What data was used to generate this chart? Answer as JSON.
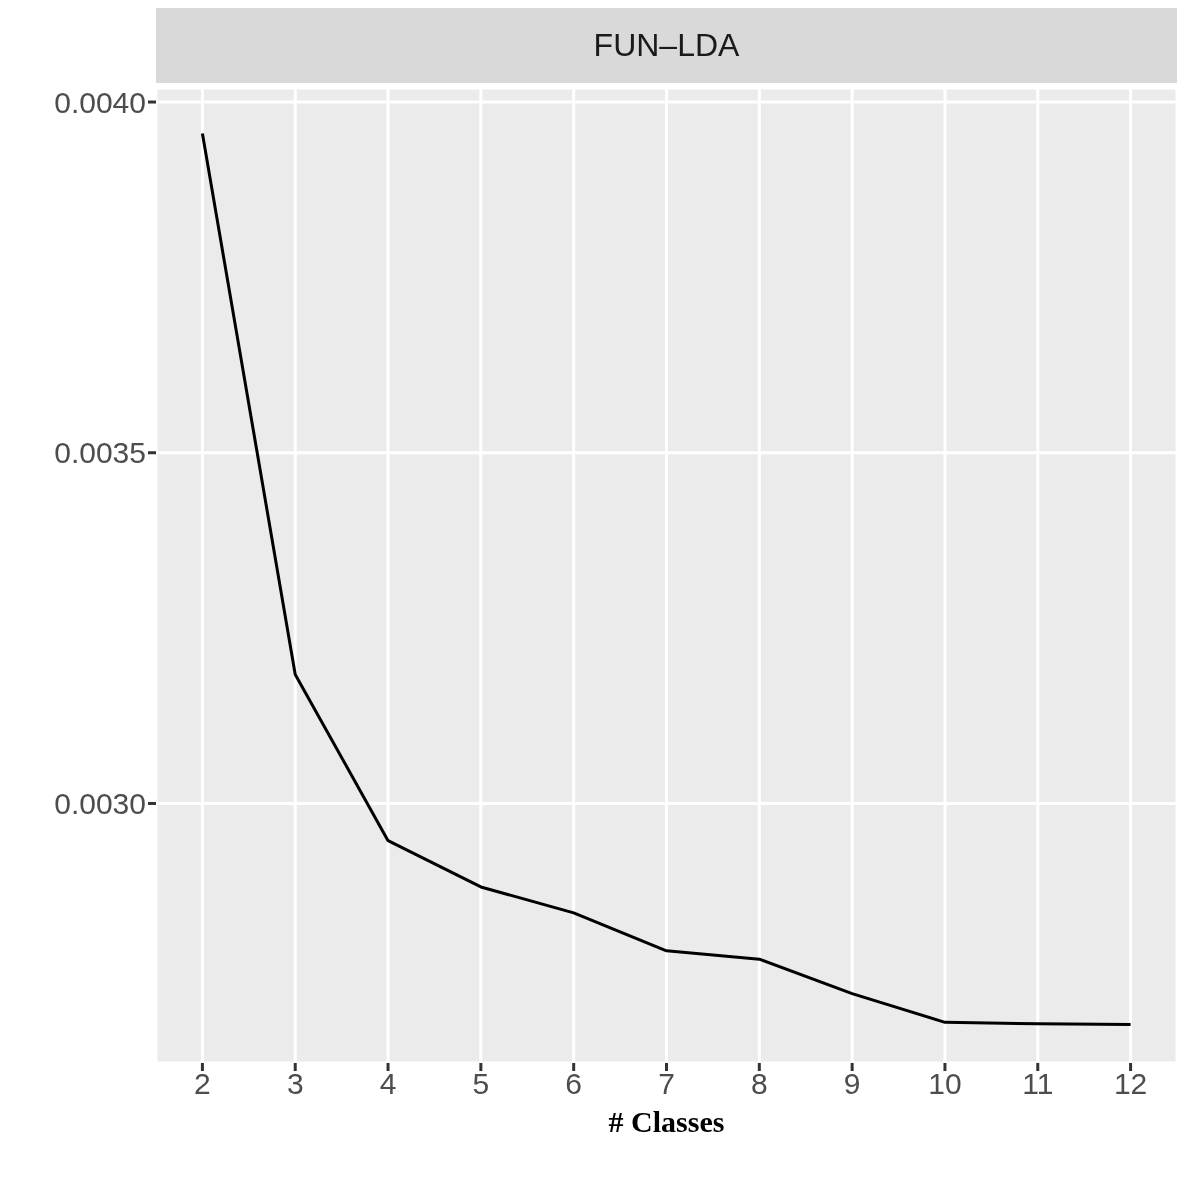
{
  "chart_data": {
    "type": "line",
    "title": "FUN–LDA",
    "xlabel": "# Classes",
    "x": [
      2,
      3,
      4,
      5,
      6,
      7,
      8,
      9,
      10,
      11,
      12
    ],
    "series": [
      {
        "color": "#000000",
        "values": [
          0.003955,
          0.003184,
          0.002947,
          0.002881,
          0.002844,
          0.00279,
          0.002778,
          0.002729,
          0.002688,
          0.002686,
          0.002685
        ]
      }
    ],
    "xlim": [
      1.5,
      12.5
    ],
    "xticks": [
      2,
      3,
      4,
      5,
      6,
      7,
      8,
      9,
      10,
      11,
      12
    ],
    "ylim": [
      0.00263,
      0.00402
    ],
    "yticks": [
      {
        "value": 0.003,
        "label": "0.0030"
      },
      {
        "value": 0.0035,
        "label": "0.0035"
      },
      {
        "value": 0.004,
        "label": "0.0040"
      }
    ],
    "grid": true,
    "marker": "none",
    "line_style": "solid"
  }
}
